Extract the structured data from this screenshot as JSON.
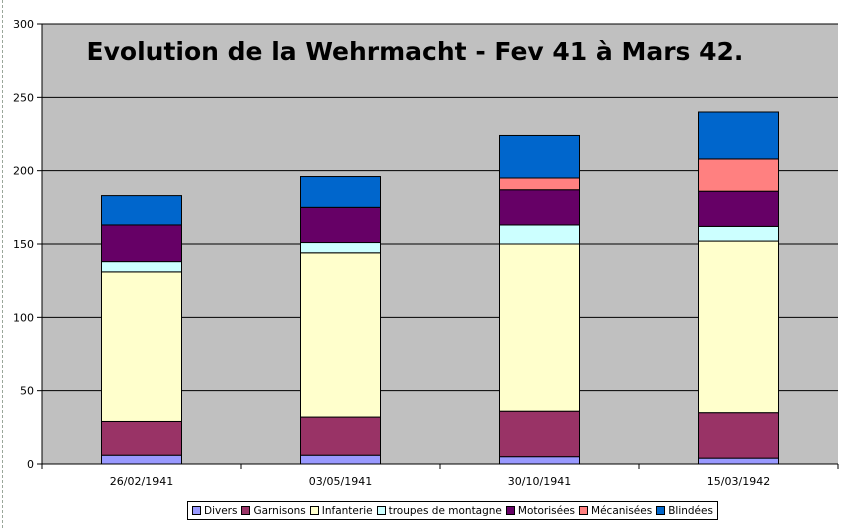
{
  "chart_data": {
    "type": "bar",
    "stacked": true,
    "title": "Evolution de la Wehrmacht - Fev 41 à Mars 42.",
    "xlabel": "",
    "ylabel": "",
    "ylim": [
      0,
      300
    ],
    "yticks": [
      0,
      50,
      100,
      150,
      200,
      250,
      300
    ],
    "grid": true,
    "legend_position": "bottom",
    "categories": [
      "26/02/1941",
      "03/05/1941",
      "30/10/1941",
      "15/03/1942"
    ],
    "series": [
      {
        "name": "Divers",
        "color": "#9999ff",
        "values": [
          6,
          6,
          5,
          4
        ]
      },
      {
        "name": "Garnisons",
        "color": "#993366",
        "values": [
          23,
          26,
          31,
          31
        ]
      },
      {
        "name": "Infanterie",
        "color": "#ffffcc",
        "values": [
          102,
          112,
          114,
          117
        ]
      },
      {
        "name": "troupes de montagne",
        "color": "#ccffff",
        "values": [
          7,
          7,
          13,
          10
        ]
      },
      {
        "name": "Motorisées",
        "color": "#660066",
        "values": [
          25,
          24,
          24,
          24
        ]
      },
      {
        "name": "Mécanisées",
        "color": "#ff8080",
        "values": [
          0,
          0,
          8,
          22
        ]
      },
      {
        "name": "Blindées",
        "color": "#0066cc",
        "values": [
          20,
          21,
          29,
          32
        ]
      }
    ],
    "plot_background": "#c0c0c0"
  }
}
